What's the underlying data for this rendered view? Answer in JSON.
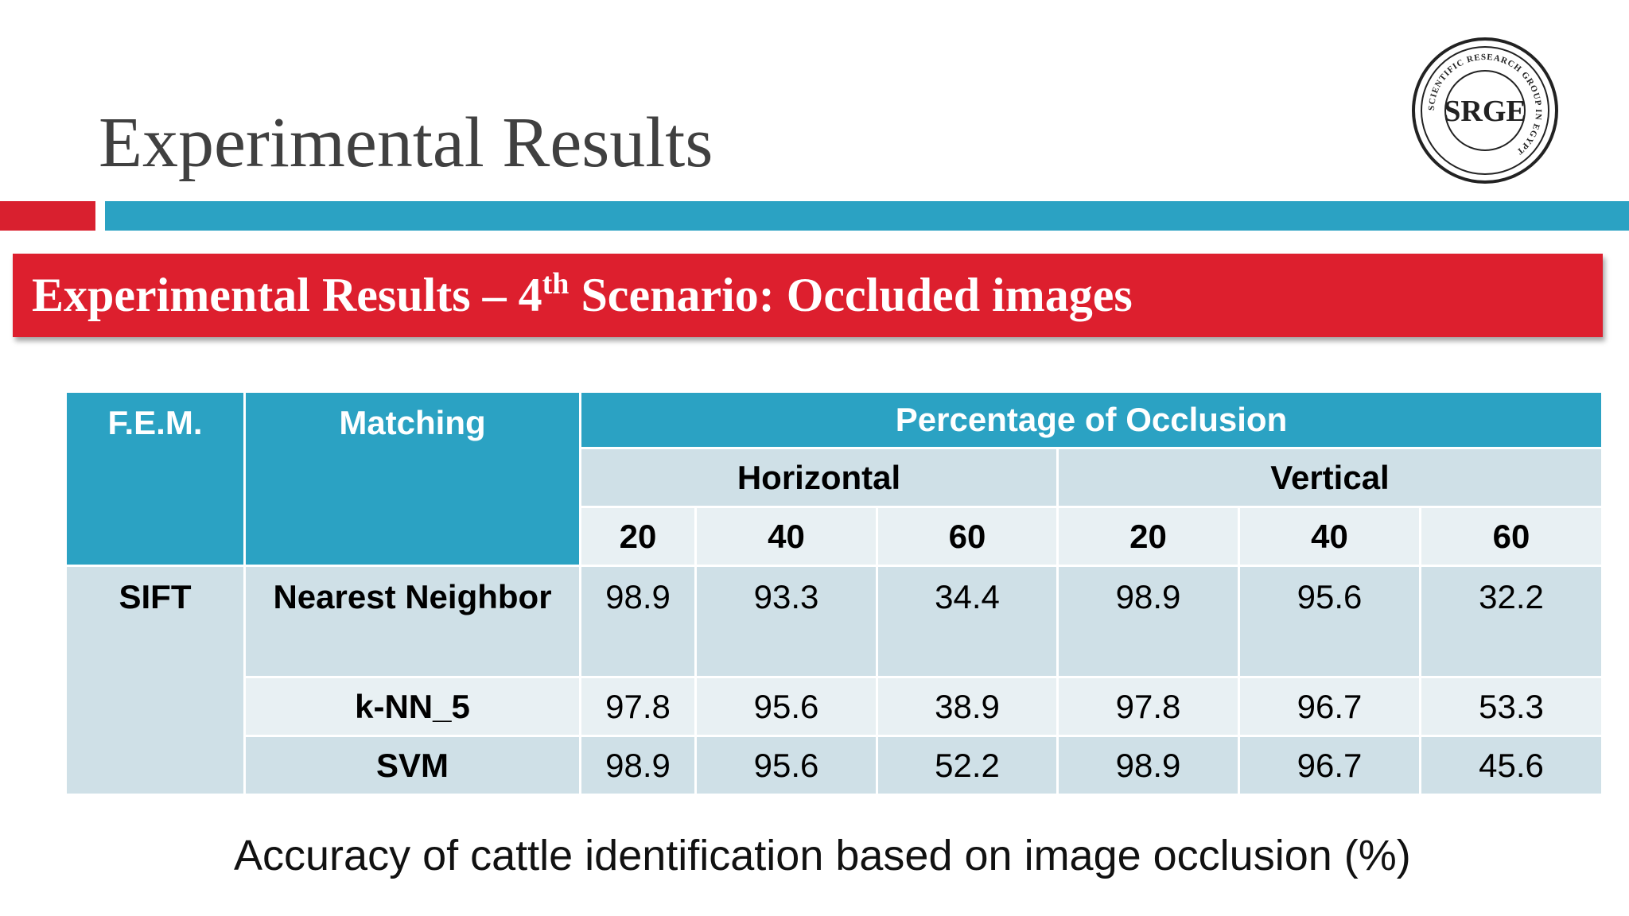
{
  "slide": {
    "title": "Experimental Results",
    "banner_prefix": "Experimental Results – 4",
    "banner_sup": "th",
    "banner_suffix": " Scenario: Occluded images",
    "logo_text": "SRGE",
    "logo_ring_text": "SCIENTIFIC RESEARCH GROUP IN EGYPT",
    "caption": "Accuracy of cattle identification based on image occlusion (%)"
  },
  "colors": {
    "red": "#dd1f2e",
    "teal": "#2ba2c3",
    "cell_dark": "#cfe0e7",
    "cell_light": "#e8f0f3"
  },
  "table": {
    "headers": {
      "fem": "F.E.M.",
      "matching": "Matching",
      "group": "Percentage of Occlusion",
      "horizontal": "Horizontal",
      "vertical": "Vertical",
      "levels": [
        "20",
        "40",
        "60",
        "20",
        "40",
        "60"
      ]
    },
    "fem_value": "SIFT",
    "rows": [
      {
        "method": "Nearest Neighbor",
        "values": [
          "98.9",
          "93.3",
          "34.4",
          "98.9",
          "95.6",
          "32.2"
        ]
      },
      {
        "method": "k-NN_5",
        "values": [
          "97.8",
          "95.6",
          "38.9",
          "97.8",
          "96.7",
          "53.3"
        ]
      },
      {
        "method": "SVM",
        "values": [
          "98.9",
          "95.6",
          "52.2",
          "98.9",
          "96.7",
          "45.6"
        ]
      }
    ]
  }
}
